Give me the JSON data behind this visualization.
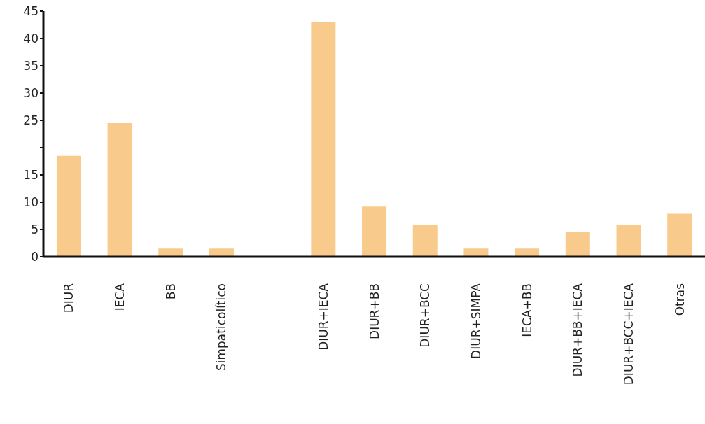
{
  "chart_data": {
    "type": "bar",
    "categories": [
      "DIUR",
      "IECA",
      "BB",
      "Simpaticolítico",
      null,
      "DIUR+IECA",
      "DIUR+BB",
      "DIUR+BCC",
      "DIUR+SIMPA",
      "IECA+BB",
      "DIUR+BB+IECA",
      "DIUR+BCC+IECA",
      "Otras"
    ],
    "values": [
      18.5,
      24.5,
      1.5,
      1.5,
      null,
      43,
      9.2,
      5.9,
      1.5,
      1.5,
      4.6,
      5.9,
      7.9
    ],
    "color": "#f8cb8c",
    "ylim": [
      0,
      45
    ],
    "yticks": [
      0,
      5,
      10,
      15,
      {
        "value": 20,
        "label": null
      },
      25,
      30,
      35,
      40,
      45
    ],
    "grid": false
  }
}
